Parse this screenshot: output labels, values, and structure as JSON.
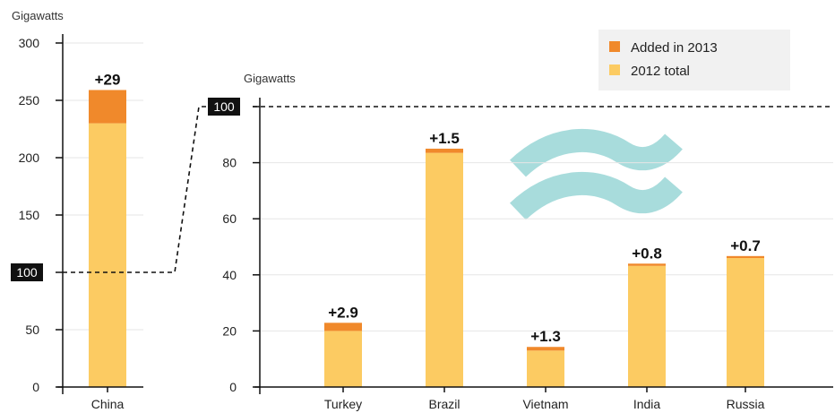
{
  "chart_data": [
    {
      "type": "bar",
      "stacked": true,
      "ylabel": "Gigawatts",
      "ylim": [
        0,
        300
      ],
      "yticks": [
        0,
        50,
        100,
        150,
        200,
        250,
        300
      ],
      "grid": true,
      "categories": [
        "China"
      ],
      "series": [
        {
          "name": "2012 total",
          "values": [
            230
          ]
        },
        {
          "name": "Added in 2013",
          "values": [
            29
          ]
        }
      ],
      "data_labels": [
        "+29"
      ],
      "highlight_tick": "100"
    },
    {
      "type": "bar",
      "stacked": true,
      "ylabel": "Gigawatts",
      "ylim": [
        0,
        100
      ],
      "yticks": [
        0,
        20,
        40,
        60,
        80,
        100
      ],
      "grid": true,
      "categories": [
        "Turkey",
        "Brazil",
        "Vietnam",
        "India",
        "Russia"
      ],
      "series": [
        {
          "name": "2012 total",
          "values": [
            20.0,
            83.5,
            13.0,
            43.2,
            46.0
          ]
        },
        {
          "name": "Added in 2013",
          "values": [
            2.9,
            1.5,
            1.3,
            0.8,
            0.7
          ]
        }
      ],
      "data_labels": [
        "+2.9",
        "+1.5",
        "+1.3",
        "+0.8",
        "+0.7"
      ],
      "highlight_tick": "100"
    }
  ],
  "legend": {
    "position": "top-right",
    "items": [
      {
        "label": "Added in 2013",
        "color": "#f0892b"
      },
      {
        "label": "2012 total",
        "color": "#fccb62"
      }
    ]
  },
  "colors": {
    "added": "#f0892b",
    "base": "#fccb62",
    "watermark": "#a8dcdc"
  }
}
